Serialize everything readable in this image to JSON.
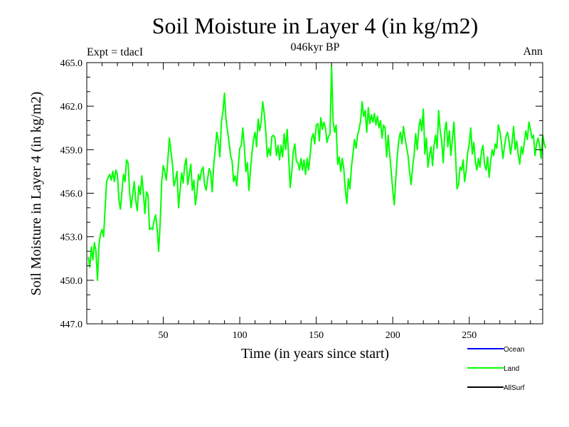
{
  "chart_data": {
    "type": "line",
    "title": "Soil Moisture in Layer 4 (in kg/m2)",
    "subtitle": "046kyr BP",
    "left_note": "Expt = tdacI",
    "right_note": "Ann",
    "xlabel": "Time (in years since start)",
    "ylabel": "Soil Moisture in Layer 4 (in kg/m2)",
    "xlim": [
      0,
      298
    ],
    "ylim": [
      447.0,
      465.0
    ],
    "x_ticks": [
      50,
      100,
      150,
      200,
      250
    ],
    "x_tick_labels": [
      "50",
      "100",
      "150",
      "200",
      "250"
    ],
    "y_ticks": [
      447,
      450,
      453,
      456,
      459,
      462,
      465
    ],
    "y_tick_labels": [
      "447.0",
      "450.0",
      "453.0",
      "456.0",
      "459.0",
      "462.0",
      "465.0"
    ],
    "legend": [
      {
        "name": "Ocean",
        "color": "#0000ff"
      },
      {
        "name": "Land",
        "color": "#00ff00"
      },
      {
        "name": "AllSurf",
        "color": "#000000"
      }
    ],
    "series": [
      {
        "name": "Land",
        "color": "#00ff00",
        "x_start": 1,
        "x_step": 1,
        "values": [
          451.6,
          450.9,
          452.3,
          451.4,
          452.6,
          452.0,
          450.0,
          452.5,
          453.2,
          453.5,
          453.0,
          455.0,
          456.8,
          457.1,
          457.3,
          456.9,
          457.5,
          456.8,
          457.6,
          457.3,
          455.6,
          454.9,
          456.1,
          457.3,
          456.8,
          458.3,
          458.1,
          456.1,
          455.0,
          455.9,
          456.8,
          455.5,
          454.8,
          456.5,
          455.9,
          457.2,
          456.0,
          454.6,
          456.1,
          455.9,
          453.5,
          453.6,
          453.5,
          454.1,
          454.5,
          453.5,
          452.0,
          454.0,
          456.8,
          457.9,
          457.5,
          456.9,
          458.3,
          459.8,
          458.9,
          458.0,
          456.5,
          456.9,
          457.5,
          455.0,
          456.2,
          457.4,
          456.7,
          457.9,
          458.4,
          456.6,
          457.3,
          458.0,
          456.2,
          456.9,
          455.2,
          456.0,
          457.3,
          456.9,
          457.6,
          457.8,
          456.6,
          456.2,
          457.0,
          457.7,
          457.4,
          456.1,
          458.0,
          459.0,
          460.2,
          459.6,
          458.5,
          460.9,
          461.6,
          462.9,
          461.1,
          460.3,
          459.5,
          458.6,
          458.2,
          456.8,
          457.2,
          456.5,
          457.8,
          459.1,
          459.3,
          460.5,
          459.2,
          457.5,
          458.1,
          456.2,
          457.6,
          458.8,
          459.7,
          460.2,
          459.2,
          461.1,
          460.3,
          460.9,
          462.3,
          461.5,
          460.3,
          458.5,
          459.1,
          458.6,
          459.9,
          460.0,
          459.8,
          458.6,
          459.3,
          458.3,
          459.3,
          458.5,
          460.1,
          459.0,
          460.4,
          458.4,
          456.4,
          457.5,
          458.9,
          459.4,
          458.2,
          458.1,
          457.6,
          458.4,
          457.6,
          458.3,
          457.3,
          458.4,
          457.6,
          458.6,
          459.8,
          460.1,
          459.4,
          460.7,
          460.8,
          459.6,
          461.2,
          460.4,
          460.9,
          460.5,
          459.5,
          459.9,
          460.1,
          464.8,
          461.0,
          460.2,
          460.7,
          458.0,
          458.5,
          457.5,
          458.4,
          457.7,
          456.2,
          455.3,
          457.0,
          456.3,
          457.8,
          458.7,
          459.7,
          459.1,
          460.0,
          460.4,
          461.0,
          462.3,
          461.3,
          461.7,
          460.2,
          461.9,
          460.8,
          461.4,
          460.9,
          461.5,
          460.7,
          461.3,
          460.5,
          461.0,
          459.8,
          460.7,
          460.5,
          458.5,
          460.0,
          458.7,
          457.5,
          456.2,
          455.2,
          457.0,
          458.6,
          459.7,
          460.2,
          459.4,
          460.6,
          459.8,
          459.2,
          458.6,
          457.5,
          456.6,
          457.8,
          458.7,
          460.1,
          459.0,
          460.5,
          461.1,
          460.3,
          461.8,
          458.7,
          459.8,
          457.8,
          458.6,
          459.2,
          457.9,
          459.3,
          460.0,
          459.1,
          461.7,
          460.3,
          459.6,
          458.1,
          460.3,
          460.9,
          459.2,
          460.3,
          458.6,
          459.7,
          460.9,
          458.8,
          456.3,
          456.6,
          457.8,
          457.6,
          458.3,
          456.8,
          457.6,
          458.8,
          459.4,
          460.5,
          458.7,
          459.5,
          458.2,
          457.6,
          458.4,
          457.8,
          458.9,
          459.3,
          458.0,
          457.6,
          458.5,
          457.1,
          458.2,
          459.0,
          458.6,
          459.4,
          459.1,
          460.7,
          460.3,
          459.5,
          458.4,
          459.2,
          459.9,
          460.2,
          459.6,
          458.7,
          459.5,
          460.6,
          459.0,
          459.6,
          458.7,
          458.0,
          459.2,
          458.7,
          459.5,
          460.3,
          459.7,
          460.9,
          460.4,
          459.8,
          460.0,
          458.6,
          459.4,
          459.8,
          459.3,
          458.4,
          460.0,
          459.4,
          459.1
        ]
      }
    ]
  }
}
